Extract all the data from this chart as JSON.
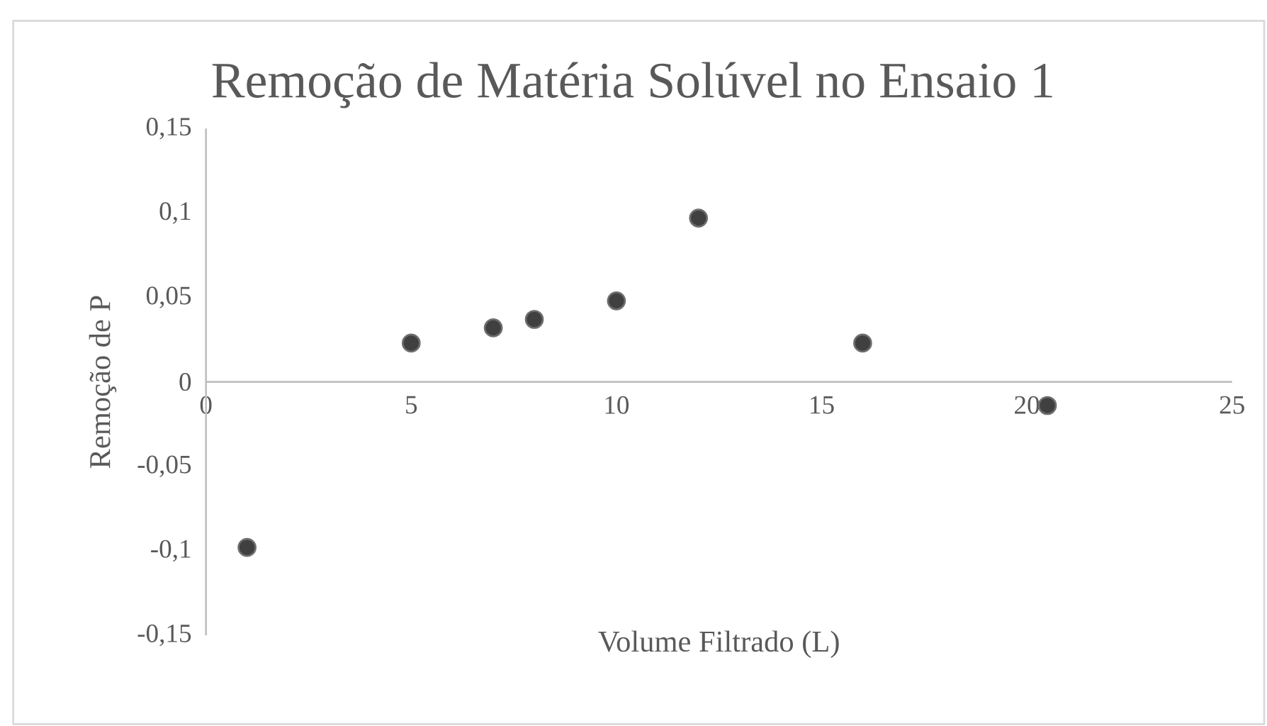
{
  "chart_data": {
    "type": "scatter",
    "title": "Remoção de Matéria Solúvel no Ensaio 1",
    "xlabel": "Volume Filtrado (L)",
    "ylabel": "Remoção de P",
    "x": [
      1,
      5,
      7,
      8,
      10,
      12,
      16,
      20.5
    ],
    "series": [
      {
        "color": "#404040",
        "values": [
          -0.098,
          0.023,
          0.032,
          0.037,
          0.048,
          0.097,
          0.023,
          -0.014
        ]
      }
    ],
    "xlim": [
      0,
      25
    ],
    "xticks": [
      0,
      5,
      10,
      15,
      20,
      25
    ],
    "ylim": [
      -0.15,
      0.15
    ],
    "yticks": [
      {
        "value": -0.15,
        "label": "-0,15"
      },
      {
        "value": -0.1,
        "label": "-0,1"
      },
      {
        "value": -0.05,
        "label": "-0,05"
      },
      {
        "value": 0,
        "label": "0"
      },
      {
        "value": 0.05,
        "label": "0,05"
      },
      {
        "value": 0.1,
        "label": "0,1"
      },
      {
        "value": 0.15,
        "label": "0,15"
      }
    ],
    "grid": false
  }
}
